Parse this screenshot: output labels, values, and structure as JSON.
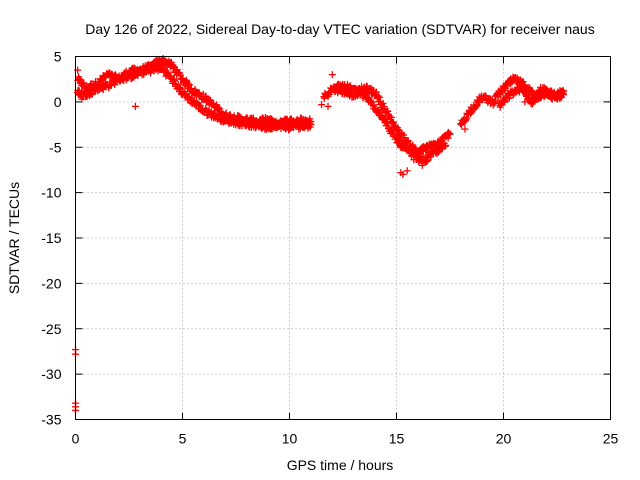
{
  "chart_data": {
    "type": "scatter",
    "title": "Day 126 of 2022, Sidereal Day-to-day VTEC variation (SDTVAR) for receiver naus",
    "xlabel": "GPS time / hours",
    "ylabel": "SDTVAR / TECUs",
    "xlim": [
      0,
      25
    ],
    "ylim": [
      -35,
      5
    ],
    "xticks": [
      0,
      5,
      10,
      15,
      20,
      25
    ],
    "yticks": [
      -35,
      -30,
      -25,
      -20,
      -15,
      -10,
      -5,
      0,
      5
    ],
    "grid": true,
    "marker": "+",
    "series": [
      {
        "name": "SDTVAR",
        "color": "#ff0000",
        "track_a": [
          [
            0.1,
            2.5
          ],
          [
            0.5,
            1.5
          ],
          [
            1.0,
            2.0
          ],
          [
            1.5,
            3.0
          ],
          [
            2.0,
            2.5
          ],
          [
            2.5,
            3.3
          ],
          [
            3.0,
            3.5
          ],
          [
            3.5,
            3.8
          ],
          [
            4.0,
            4.6
          ],
          [
            4.5,
            4.0
          ],
          [
            5.0,
            2.5
          ],
          [
            5.5,
            1.2
          ],
          [
            6.0,
            0.5
          ],
          [
            7.0,
            -1.5
          ],
          [
            7.5,
            -1.8
          ],
          [
            8.0,
            -2.0
          ],
          [
            8.5,
            -2.2
          ],
          [
            9.0,
            -2.0
          ],
          [
            9.5,
            -2.6
          ],
          [
            10.0,
            -2.8
          ],
          [
            10.5,
            -2.0
          ],
          [
            11.0,
            -2.2
          ]
        ],
        "track_b": [
          [
            0.1,
            1.0
          ],
          [
            0.5,
            0.8
          ],
          [
            1.0,
            1.5
          ],
          [
            1.5,
            1.8
          ],
          [
            2.0,
            2.5
          ],
          [
            2.5,
            2.8
          ],
          [
            3.0,
            3.2
          ],
          [
            3.5,
            3.5
          ],
          [
            4.0,
            3.8
          ],
          [
            4.5,
            2.5
          ],
          [
            5.0,
            1.0
          ],
          [
            5.5,
            0.0
          ],
          [
            6.0,
            -1.0
          ],
          [
            6.5,
            -1.5
          ],
          [
            7.0,
            -2.0
          ],
          [
            7.5,
            -2.2
          ],
          [
            8.0,
            -2.4
          ],
          [
            8.5,
            -2.6
          ],
          [
            9.0,
            -2.8
          ],
          [
            9.5,
            -2.4
          ],
          [
            10.0,
            -2.0
          ],
          [
            10.5,
            -2.8
          ],
          [
            11.0,
            -2.5
          ]
        ],
        "track_c": [
          [
            11.6,
            0.5
          ],
          [
            12.0,
            1.5
          ],
          [
            12.5,
            1.2
          ],
          [
            13.0,
            0.8
          ],
          [
            13.5,
            1.5
          ],
          [
            14.0,
            1.0
          ],
          [
            14.5,
            -1.0
          ],
          [
            15.0,
            -3.0
          ],
          [
            15.5,
            -4.5
          ],
          [
            16.0,
            -5.5
          ],
          [
            16.5,
            -5.0
          ],
          [
            17.0,
            -4.5
          ],
          [
            17.5,
            -3.5
          ]
        ],
        "track_d": [
          [
            12.2,
            2.0
          ],
          [
            12.8,
            1.5
          ],
          [
            13.3,
            1.0
          ],
          [
            13.8,
            0.0
          ],
          [
            14.3,
            -1.5
          ],
          [
            14.8,
            -3.5
          ],
          [
            15.3,
            -5.0
          ],
          [
            15.8,
            -6.0
          ],
          [
            16.3,
            -6.5
          ],
          [
            16.8,
            -5.5
          ],
          [
            17.3,
            -4.8
          ]
        ],
        "track_e": [
          [
            18.0,
            -2.5
          ],
          [
            18.5,
            -0.8
          ],
          [
            19.0,
            0.5
          ],
          [
            19.5,
            0.0
          ],
          [
            20.0,
            1.5
          ],
          [
            20.5,
            2.5
          ],
          [
            21.0,
            1.8
          ],
          [
            21.5,
            0.5
          ],
          [
            22.0,
            1.0
          ],
          [
            22.5,
            0.8
          ],
          [
            22.8,
            1.2
          ]
        ],
        "track_f": [
          [
            19.8,
            -0.5
          ],
          [
            20.3,
            0.8
          ],
          [
            20.8,
            1.5
          ],
          [
            21.3,
            0.0
          ],
          [
            21.8,
            1.5
          ],
          [
            22.3,
            0.5
          ],
          [
            22.8,
            0.8
          ]
        ],
        "scattered": [
          [
            0.1,
            3.5
          ],
          [
            0.3,
            0.3
          ],
          [
            2.8,
            -0.5
          ],
          [
            11.5,
            -0.3
          ],
          [
            11.8,
            -0.5
          ],
          [
            12.0,
            3.0
          ],
          [
            15.2,
            -7.8
          ],
          [
            15.3,
            -8.0
          ],
          [
            15.5,
            -7.6
          ],
          [
            16.2,
            -7.0
          ],
          [
            18.2,
            -3.0
          ],
          [
            21.0,
            0.0
          ]
        ],
        "outliers": [
          [
            0.0,
            -27.3
          ],
          [
            0.0,
            -27.8
          ],
          [
            0.0,
            -33.2
          ],
          [
            0.0,
            -33.6
          ],
          [
            0.0,
            -34.0
          ]
        ]
      }
    ]
  }
}
